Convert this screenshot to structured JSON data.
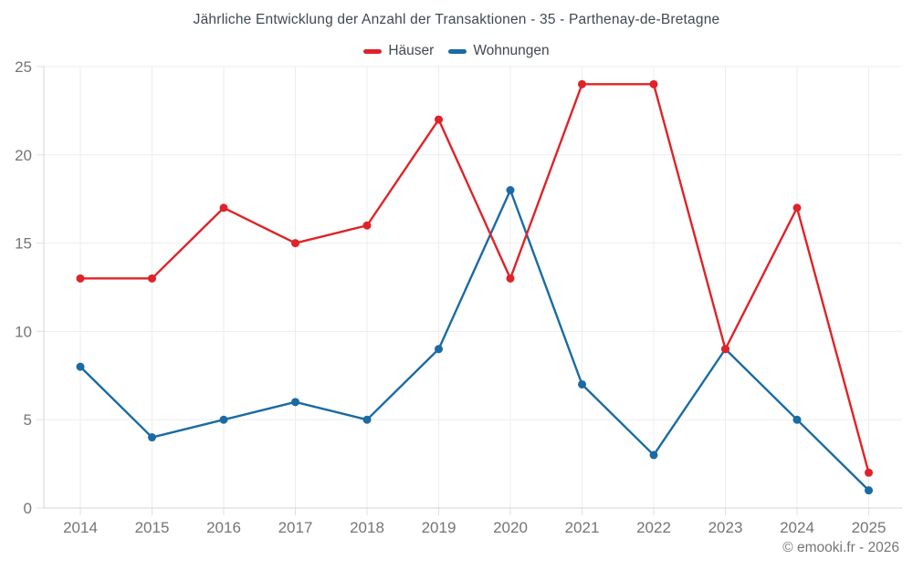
{
  "page": {
    "footer_credit": "© emooki.fr - 2026"
  },
  "colors": {
    "background": "#ffffff",
    "grid": "#ededed",
    "axis": "#d4d4d4",
    "tick": "#e0e0e0",
    "tick_label": "#757575",
    "title_text": "#3d4a52",
    "haeuser_red": "#df2328",
    "wohnungen_blue": "#1a6ba3"
  },
  "chart_data": {
    "type": "line",
    "title": "Jährliche Entwicklung der Anzahl der Transaktionen - 35 - Parthenay-de-Bretagne",
    "categories": [
      "2014",
      "2015",
      "2016",
      "2017",
      "2018",
      "2019",
      "2020",
      "2021",
      "2022",
      "2023",
      "2024",
      "2025"
    ],
    "series": [
      {
        "name": "Häuser",
        "color": "#df2328",
        "values": [
          13,
          13,
          17,
          15,
          16,
          22,
          13,
          24,
          24,
          9,
          17,
          2
        ]
      },
      {
        "name": "Wohnungen",
        "color": "#1a6ba3",
        "values": [
          8,
          4,
          5,
          6,
          5,
          9,
          18,
          7,
          3,
          9,
          5,
          1
        ]
      }
    ],
    "xlabel": "",
    "ylabel": "",
    "ylim": [
      0,
      25
    ],
    "yticks": [
      0,
      5,
      10,
      15,
      20,
      25
    ],
    "grid": true,
    "legend_position": "top",
    "marker": "circle",
    "annotation": "© emooki.fr - 2026"
  }
}
